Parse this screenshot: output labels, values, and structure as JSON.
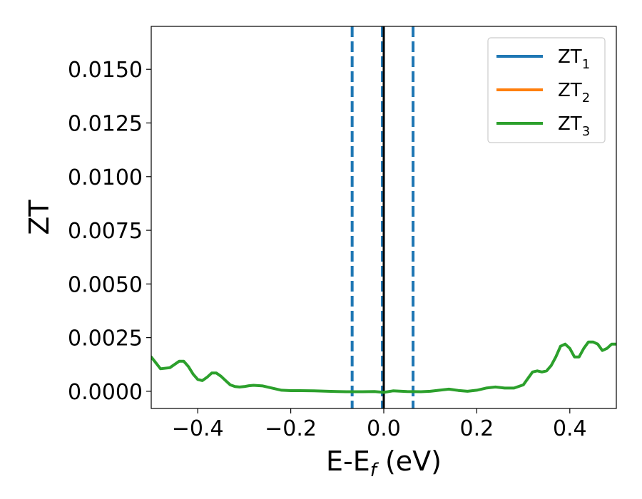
{
  "chart_data": {
    "type": "line",
    "xlabel_main": "E-E",
    "xlabel_sub": "f",
    "xlabel_tail": " (eV)",
    "ylabel": "ZT",
    "xlim": [
      -0.5,
      0.5
    ],
    "ylim": [
      -0.0008,
      0.017
    ],
    "x_ticks": [
      -0.4,
      -0.2,
      0.0,
      0.2,
      0.4
    ],
    "x_tick_labels": [
      "−0.4",
      "−0.2",
      "0.0",
      "0.2",
      "0.4"
    ],
    "y_ticks": [
      0.0,
      0.0025,
      0.005,
      0.0075,
      0.01,
      0.0125,
      0.015
    ],
    "y_tick_labels": [
      "0.0000",
      "0.0025",
      "0.0050",
      "0.0075",
      "0.0100",
      "0.0125",
      "0.0150"
    ],
    "legend_position": "top-right",
    "vertical_lines": [
      {
        "x": -0.068,
        "style": "dashed",
        "color": "#1f77b4"
      },
      {
        "x": 0.063,
        "style": "dashed",
        "color": "#1f77b4"
      },
      {
        "x": -0.003,
        "style": "dashed",
        "color": "#1f77b4"
      },
      {
        "x": 0.0,
        "style": "solid",
        "color": "#000000"
      }
    ],
    "series": [
      {
        "name_main": "ZT",
        "name_sub": "1",
        "color": "#1f77b4",
        "x": [],
        "y": []
      },
      {
        "name_main": "ZT",
        "name_sub": "2",
        "color": "#ff7f0e",
        "x": [],
        "y": []
      },
      {
        "name_main": "ZT",
        "name_sub": "3",
        "color": "#2ca02c",
        "x": [
          -0.5,
          -0.48,
          -0.46,
          -0.44,
          -0.43,
          -0.42,
          -0.41,
          -0.4,
          -0.39,
          -0.38,
          -0.37,
          -0.36,
          -0.35,
          -0.34,
          -0.33,
          -0.32,
          -0.31,
          -0.3,
          -0.29,
          -0.28,
          -0.26,
          -0.24,
          -0.22,
          -0.2,
          -0.18,
          -0.15,
          -0.12,
          -0.1,
          -0.08,
          -0.05,
          -0.02,
          0.0,
          0.02,
          0.05,
          0.08,
          0.1,
          0.12,
          0.14,
          0.16,
          0.18,
          0.2,
          0.22,
          0.24,
          0.26,
          0.28,
          0.3,
          0.31,
          0.32,
          0.33,
          0.34,
          0.35,
          0.36,
          0.37,
          0.38,
          0.39,
          0.4,
          0.41,
          0.42,
          0.43,
          0.44,
          0.45,
          0.46,
          0.47,
          0.48,
          0.49,
          0.5
        ],
        "y": [
          0.0016,
          0.00105,
          0.0011,
          0.0014,
          0.0014,
          0.00115,
          0.0008,
          0.00055,
          0.0005,
          0.00065,
          0.00085,
          0.00085,
          0.0007,
          0.0005,
          0.0003,
          0.00022,
          0.0002,
          0.00022,
          0.00026,
          0.00028,
          0.00025,
          0.00015,
          5e-05,
          3e-05,
          3e-05,
          2e-05,
          0.0,
          -1e-05,
          -2e-05,
          -2e-05,
          -1e-05,
          -5e-05,
          2e-05,
          -1e-05,
          -2e-05,
          0.0,
          5e-05,
          0.0001,
          4e-05,
          0.0,
          5e-05,
          0.00015,
          0.0002,
          0.00015,
          0.00015,
          0.0003,
          0.0006,
          0.0009,
          0.00095,
          0.0009,
          0.00095,
          0.0012,
          0.0016,
          0.0021,
          0.0022,
          0.002,
          0.0016,
          0.0016,
          0.002,
          0.0023,
          0.0023,
          0.0022,
          0.0019,
          0.002,
          0.0022,
          0.0022
        ]
      }
    ]
  }
}
